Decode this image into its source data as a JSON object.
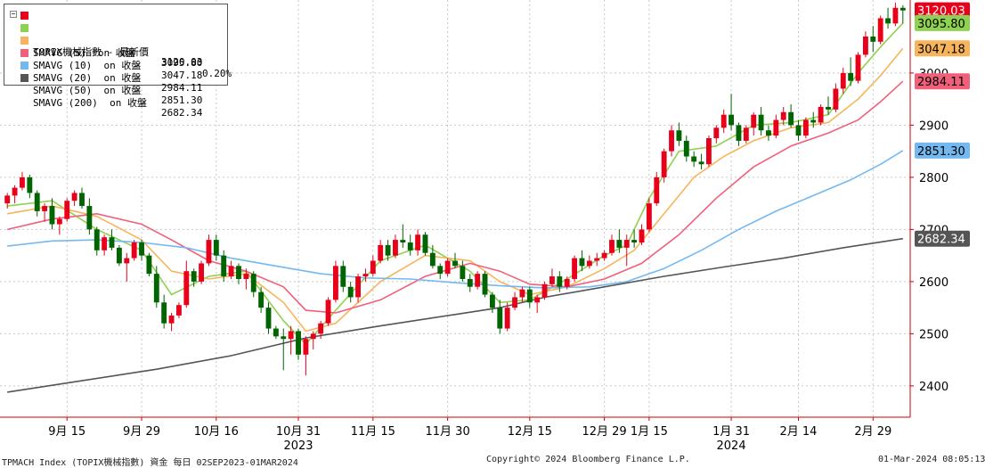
{
  "legend": {
    "rows": [
      {
        "label": "TOPIX機械指數 - 最新價",
        "value": "3120.03",
        "change": "0.20%",
        "color": "#e8001b"
      },
      {
        "label": "SMAVG (5)  on 收盤",
        "value": "3095.80",
        "color": "#8fd150"
      },
      {
        "label": "SMAVG (10)  on 收盤",
        "value": "3047.18",
        "color": "#f7b45c"
      },
      {
        "label": "SMAVG (20)  on 收盤",
        "value": "2984.11",
        "color": "#f0607a"
      },
      {
        "label": "SMAVG (50)  on 收盤",
        "value": "2851.30",
        "color": "#73b9f0"
      },
      {
        "label": "SMAVG (200)  on 收盤",
        "value": "2682.34",
        "color": "#555555"
      }
    ]
  },
  "footer": {
    "left": "TPMACH Index (TOPIX機械指數) 資金  每日 02SEP2023-01MAR2024",
    "center": "Copyright© 2024 Bloomberg Finance L.P.",
    "right": "01-Mar-2024 08:05:13"
  },
  "chart_data": {
    "type": "candlestick",
    "ylim": [
      2340,
      3140
    ],
    "y_ticks": [
      2400,
      2500,
      2600,
      2700,
      2800,
      2900,
      3000
    ],
    "x_tick_labels": [
      {
        "label": "9月 15",
        "idx": 8
      },
      {
        "label": "9月 29",
        "idx": 18
      },
      {
        "label": "10月 16",
        "idx": 28
      },
      {
        "label": "10月 31",
        "idx": 39
      },
      {
        "label": "11月 15",
        "idx": 49
      },
      {
        "label": "11月 30",
        "idx": 59
      },
      {
        "label": "12月 15",
        "idx": 70
      },
      {
        "label": "12月 29",
        "idx": 80
      },
      {
        "label": "1月 15",
        "idx": 86
      },
      {
        "label": "1月 31",
        "idx": 97
      },
      {
        "label": "2月 14",
        "idx": 106
      },
      {
        "label": "2月 29",
        "idx": 116
      }
    ],
    "year_labels": [
      {
        "label": "2023",
        "idx": 39
      },
      {
        "label": "2024",
        "idx": 97
      }
    ],
    "candles": [
      [
        2750,
        2770,
        2740,
        2765
      ],
      [
        2765,
        2785,
        2750,
        2780
      ],
      [
        2780,
        2810,
        2775,
        2800
      ],
      [
        2800,
        2805,
        2760,
        2770
      ],
      [
        2770,
        2775,
        2725,
        2735
      ],
      [
        2735,
        2750,
        2715,
        2745
      ],
      [
        2745,
        2760,
        2700,
        2710
      ],
      [
        2710,
        2725,
        2690,
        2720
      ],
      [
        2720,
        2760,
        2715,
        2755
      ],
      [
        2755,
        2775,
        2745,
        2770
      ],
      [
        2770,
        2780,
        2740,
        2745
      ],
      [
        2745,
        2760,
        2690,
        2700
      ],
      [
        2700,
        2705,
        2650,
        2660
      ],
      [
        2660,
        2690,
        2650,
        2685
      ],
      [
        2685,
        2700,
        2660,
        2665
      ],
      [
        2665,
        2670,
        2630,
        2635
      ],
      [
        2635,
        2655,
        2600,
        2645
      ],
      [
        2645,
        2680,
        2640,
        2675
      ],
      [
        2675,
        2680,
        2640,
        2650
      ],
      [
        2650,
        2655,
        2610,
        2615
      ],
      [
        2615,
        2630,
        2550,
        2560
      ],
      [
        2560,
        2575,
        2510,
        2520
      ],
      [
        2520,
        2540,
        2505,
        2535
      ],
      [
        2535,
        2560,
        2530,
        2555
      ],
      [
        2555,
        2640,
        2550,
        2620
      ],
      [
        2620,
        2625,
        2590,
        2600
      ],
      [
        2600,
        2640,
        2595,
        2635
      ],
      [
        2635,
        2690,
        2630,
        2680
      ],
      [
        2680,
        2690,
        2640,
        2650
      ],
      [
        2650,
        2660,
        2600,
        2610
      ],
      [
        2610,
        2640,
        2605,
        2630
      ],
      [
        2630,
        2635,
        2595,
        2605
      ],
      [
        2605,
        2625,
        2585,
        2615
      ],
      [
        2615,
        2620,
        2570,
        2580
      ],
      [
        2580,
        2590,
        2540,
        2550
      ],
      [
        2550,
        2560,
        2500,
        2510
      ],
      [
        2510,
        2515,
        2490,
        2495
      ],
      [
        2495,
        2510,
        2430,
        2490
      ],
      [
        2490,
        2515,
        2460,
        2505
      ],
      [
        2505,
        2510,
        2450,
        2460
      ],
      [
        2460,
        2495,
        2420,
        2490
      ],
      [
        2490,
        2505,
        2470,
        2500
      ],
      [
        2500,
        2525,
        2490,
        2520
      ],
      [
        2520,
        2570,
        2515,
        2565
      ],
      [
        2565,
        2640,
        2560,
        2630
      ],
      [
        2630,
        2640,
        2580,
        2590
      ],
      [
        2590,
        2600,
        2560,
        2570
      ],
      [
        2570,
        2615,
        2560,
        2610
      ],
      [
        2610,
        2625,
        2600,
        2615
      ],
      [
        2615,
        2650,
        2610,
        2640
      ],
      [
        2640,
        2680,
        2635,
        2670
      ],
      [
        2670,
        2680,
        2640,
        2650
      ],
      [
        2650,
        2690,
        2645,
        2680
      ],
      [
        2680,
        2710,
        2665,
        2675
      ],
      [
        2675,
        2690,
        2650,
        2660
      ],
      [
        2660,
        2700,
        2650,
        2690
      ],
      [
        2690,
        2695,
        2650,
        2655
      ],
      [
        2655,
        2670,
        2625,
        2630
      ],
      [
        2630,
        2635,
        2605,
        2615
      ],
      [
        2615,
        2645,
        2610,
        2640
      ],
      [
        2640,
        2655,
        2625,
        2630
      ],
      [
        2630,
        2640,
        2600,
        2605
      ],
      [
        2605,
        2615,
        2580,
        2590
      ],
      [
        2590,
        2620,
        2585,
        2615
      ],
      [
        2615,
        2620,
        2570,
        2575
      ],
      [
        2575,
        2580,
        2540,
        2550
      ],
      [
        2550,
        2565,
        2500,
        2510
      ],
      [
        2510,
        2560,
        2505,
        2550
      ],
      [
        2550,
        2580,
        2545,
        2570
      ],
      [
        2570,
        2590,
        2560,
        2585
      ],
      [
        2585,
        2590,
        2550,
        2560
      ],
      [
        2560,
        2575,
        2540,
        2570
      ],
      [
        2570,
        2600,
        2565,
        2595
      ],
      [
        2595,
        2625,
        2590,
        2610
      ],
      [
        2610,
        2620,
        2580,
        2590
      ],
      [
        2590,
        2610,
        2585,
        2605
      ],
      [
        2605,
        2650,
        2600,
        2645
      ],
      [
        2645,
        2660,
        2620,
        2630
      ],
      [
        2630,
        2650,
        2625,
        2640
      ],
      [
        2640,
        2655,
        2630,
        2645
      ],
      [
        2645,
        2660,
        2640,
        2655
      ],
      [
        2655,
        2690,
        2650,
        2680
      ],
      [
        2680,
        2700,
        2655,
        2665
      ],
      [
        2665,
        2690,
        2630,
        2680
      ],
      [
        2680,
        2700,
        2665,
        2675
      ],
      [
        2675,
        2710,
        2670,
        2700
      ],
      [
        2700,
        2760,
        2695,
        2750
      ],
      [
        2750,
        2810,
        2745,
        2800
      ],
      [
        2800,
        2855,
        2790,
        2850
      ],
      [
        2850,
        2900,
        2840,
        2890
      ],
      [
        2890,
        2905,
        2860,
        2870
      ],
      [
        2870,
        2880,
        2830,
        2840
      ],
      [
        2840,
        2850,
        2820,
        2830
      ],
      [
        2830,
        2845,
        2815,
        2825
      ],
      [
        2825,
        2880,
        2820,
        2875
      ],
      [
        2875,
        2900,
        2865,
        2895
      ],
      [
        2895,
        2930,
        2885,
        2920
      ],
      [
        2920,
        2960,
        2890,
        2900
      ],
      [
        2900,
        2905,
        2860,
        2870
      ],
      [
        2870,
        2900,
        2865,
        2895
      ],
      [
        2895,
        2925,
        2880,
        2920
      ],
      [
        2920,
        2935,
        2880,
        2890
      ],
      [
        2890,
        2900,
        2870,
        2880
      ],
      [
        2880,
        2920,
        2875,
        2910
      ],
      [
        2910,
        2935,
        2900,
        2925
      ],
      [
        2925,
        2940,
        2895,
        2900
      ],
      [
        2900,
        2910,
        2870,
        2880
      ],
      [
        2880,
        2915,
        2875,
        2910
      ],
      [
        2910,
        2925,
        2895,
        2905
      ],
      [
        2905,
        2940,
        2900,
        2935
      ],
      [
        2935,
        2955,
        2920,
        2930
      ],
      [
        2930,
        2980,
        2925,
        2970
      ],
      [
        2970,
        3010,
        2960,
        3000
      ],
      [
        3000,
        3030,
        2975,
        2985
      ],
      [
        2985,
        3040,
        2980,
        3035
      ],
      [
        3035,
        3080,
        3030,
        3070
      ],
      [
        3070,
        3090,
        3040,
        3060
      ],
      [
        3060,
        3110,
        3055,
        3105
      ],
      [
        3105,
        3125,
        3085,
        3095
      ],
      [
        3095,
        3135,
        3090,
        3125
      ],
      [
        3125,
        3130,
        3095,
        3120
      ]
    ],
    "ma_series": [
      {
        "name": "SMAVG (5)",
        "color": "#8fd150",
        "points": [
          [
            0,
            2745
          ],
          [
            6,
            2755
          ],
          [
            12,
            2700
          ],
          [
            18,
            2660
          ],
          [
            22,
            2575
          ],
          [
            27,
            2610
          ],
          [
            32,
            2620
          ],
          [
            37,
            2525
          ],
          [
            40,
            2480
          ],
          [
            44,
            2545
          ],
          [
            50,
            2640
          ],
          [
            56,
            2670
          ],
          [
            62,
            2620
          ],
          [
            66,
            2560
          ],
          [
            70,
            2565
          ],
          [
            75,
            2605
          ],
          [
            80,
            2650
          ],
          [
            83,
            2670
          ],
          [
            86,
            2760
          ],
          [
            90,
            2850
          ],
          [
            95,
            2860
          ],
          [
            100,
            2900
          ],
          [
            105,
            2905
          ],
          [
            110,
            2920
          ],
          [
            114,
            3000
          ],
          [
            117,
            3050
          ],
          [
            120,
            3095.8
          ]
        ]
      },
      {
        "name": "SMAVG (10)",
        "color": "#f7b45c",
        "points": [
          [
            0,
            2730
          ],
          [
            6,
            2745
          ],
          [
            12,
            2725
          ],
          [
            18,
            2680
          ],
          [
            22,
            2620
          ],
          [
            27,
            2605
          ],
          [
            32,
            2615
          ],
          [
            37,
            2560
          ],
          [
            40,
            2505
          ],
          [
            44,
            2520
          ],
          [
            50,
            2600
          ],
          [
            56,
            2650
          ],
          [
            62,
            2640
          ],
          [
            66,
            2600
          ],
          [
            70,
            2575
          ],
          [
            75,
            2590
          ],
          [
            80,
            2625
          ],
          [
            84,
            2660
          ],
          [
            88,
            2730
          ],
          [
            92,
            2800
          ],
          [
            96,
            2840
          ],
          [
            100,
            2870
          ],
          [
            105,
            2895
          ],
          [
            110,
            2905
          ],
          [
            114,
            2950
          ],
          [
            117,
            2995
          ],
          [
            120,
            3047.18
          ]
        ]
      },
      {
        "name": "SMAVG (20)",
        "color": "#f0607a",
        "points": [
          [
            0,
            2700
          ],
          [
            6,
            2720
          ],
          [
            12,
            2730
          ],
          [
            18,
            2710
          ],
          [
            22,
            2680
          ],
          [
            27,
            2640
          ],
          [
            32,
            2620
          ],
          [
            37,
            2590
          ],
          [
            40,
            2545
          ],
          [
            44,
            2540
          ],
          [
            50,
            2565
          ],
          [
            56,
            2610
          ],
          [
            62,
            2635
          ],
          [
            66,
            2620
          ],
          [
            70,
            2595
          ],
          [
            75,
            2590
          ],
          [
            80,
            2605
          ],
          [
            85,
            2635
          ],
          [
            90,
            2690
          ],
          [
            95,
            2760
          ],
          [
            100,
            2820
          ],
          [
            105,
            2860
          ],
          [
            110,
            2885
          ],
          [
            114,
            2910
          ],
          [
            117,
            2945
          ],
          [
            120,
            2984.11
          ]
        ]
      },
      {
        "name": "SMAVG (50)",
        "color": "#73b9f0",
        "points": [
          [
            0,
            2668
          ],
          [
            6,
            2678
          ],
          [
            12,
            2680
          ],
          [
            18,
            2675
          ],
          [
            24,
            2665
          ],
          [
            30,
            2645
          ],
          [
            36,
            2630
          ],
          [
            42,
            2615
          ],
          [
            48,
            2607
          ],
          [
            54,
            2605
          ],
          [
            60,
            2598
          ],
          [
            66,
            2592
          ],
          [
            72,
            2588
          ],
          [
            78,
            2590
          ],
          [
            83,
            2600
          ],
          [
            88,
            2625
          ],
          [
            93,
            2660
          ],
          [
            98,
            2700
          ],
          [
            103,
            2735
          ],
          [
            108,
            2765
          ],
          [
            113,
            2795
          ],
          [
            117,
            2825
          ],
          [
            120,
            2851.3
          ]
        ]
      },
      {
        "name": "SMAVG (200)",
        "color": "#555555",
        "points": [
          [
            0,
            2388
          ],
          [
            10,
            2410
          ],
          [
            20,
            2432
          ],
          [
            30,
            2458
          ],
          [
            40,
            2492
          ],
          [
            50,
            2515
          ],
          [
            60,
            2537
          ],
          [
            66,
            2550
          ],
          [
            72,
            2570
          ],
          [
            80,
            2590
          ],
          [
            88,
            2610
          ],
          [
            96,
            2628
          ],
          [
            104,
            2645
          ],
          [
            112,
            2665
          ],
          [
            120,
            2682.34
          ]
        ]
      }
    ],
    "last_labels": [
      {
        "value": "3120.03",
        "y": 3120.03,
        "color": "#e8001b",
        "text_color": "#ffffff"
      },
      {
        "value": "3095.80",
        "y": 3095.8,
        "color": "#8fd150",
        "text_color": "#000000"
      },
      {
        "value": "3047.18",
        "y": 3047.18,
        "color": "#f7b45c",
        "text_color": "#000000"
      },
      {
        "value": "2984.11",
        "y": 2984.11,
        "color": "#f0607a",
        "text_color": "#000000"
      },
      {
        "value": "2851.30",
        "y": 2851.3,
        "color": "#73b9f0",
        "text_color": "#000000"
      },
      {
        "value": "2682.34",
        "y": 2682.34,
        "color": "#555555",
        "text_color": "#ffffff"
      }
    ],
    "colors": {
      "up": "#e8001b",
      "down": "#006400",
      "frame": "#cc0000",
      "grid": "#c8c8c8"
    }
  }
}
